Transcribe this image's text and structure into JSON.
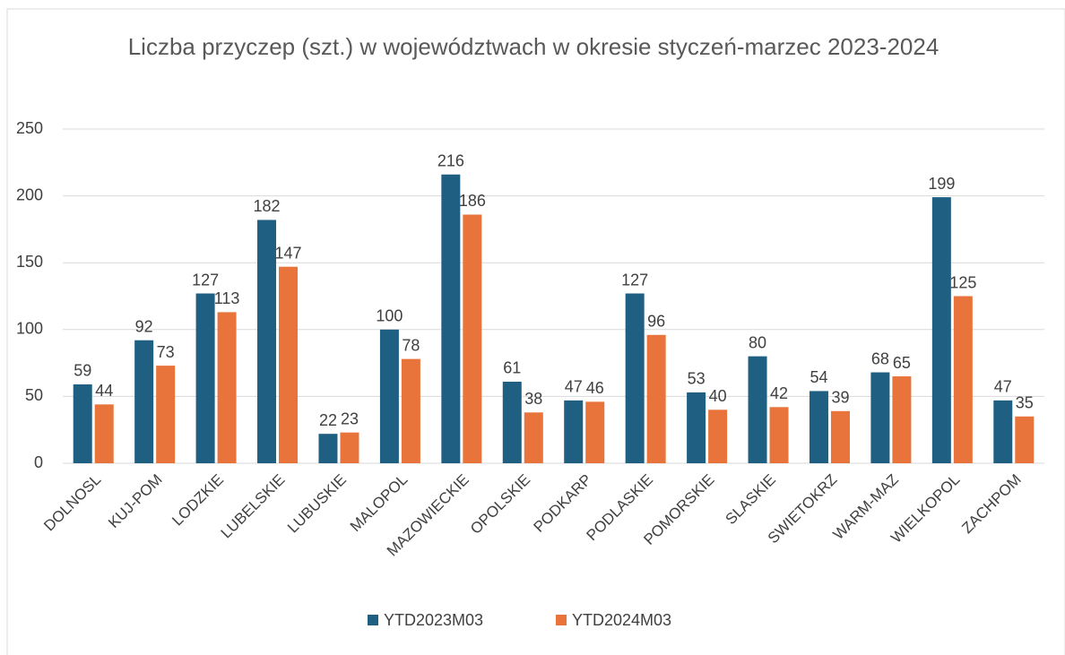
{
  "chart_data": {
    "type": "bar",
    "title": "Liczba przyczep (szt.) w województwach w okresie styczeń-marzec 2023-2024",
    "categories": [
      "DOLNOSL",
      "KUJ-POM",
      "LODZKIE",
      "LUBELSKIE",
      "LUBUSKIE",
      "MALOPOL",
      "MAZOWIECKIE",
      "OPOLSKIE",
      "PODKARP",
      "PODLASKIE",
      "POMORSKIE",
      "SLASKIE",
      "SWIETOKRZ",
      "WARM-MAZ",
      "WIELKOPOL",
      "ZACHPOM"
    ],
    "series": [
      {
        "name": "YTD2023M03",
        "color": "#1f5f82",
        "values": [
          59,
          92,
          127,
          182,
          22,
          100,
          216,
          61,
          47,
          127,
          53,
          80,
          54,
          68,
          199,
          47
        ]
      },
      {
        "name": "YTD2024M03",
        "color": "#e8743b",
        "values": [
          44,
          73,
          113,
          147,
          23,
          78,
          186,
          38,
          46,
          96,
          40,
          42,
          39,
          65,
          125,
          35
        ]
      }
    ],
    "ylim": [
      0,
      250
    ],
    "yticks": [
      0,
      50,
      100,
      150,
      200,
      250
    ],
    "grid": true,
    "legend": "bottom"
  }
}
